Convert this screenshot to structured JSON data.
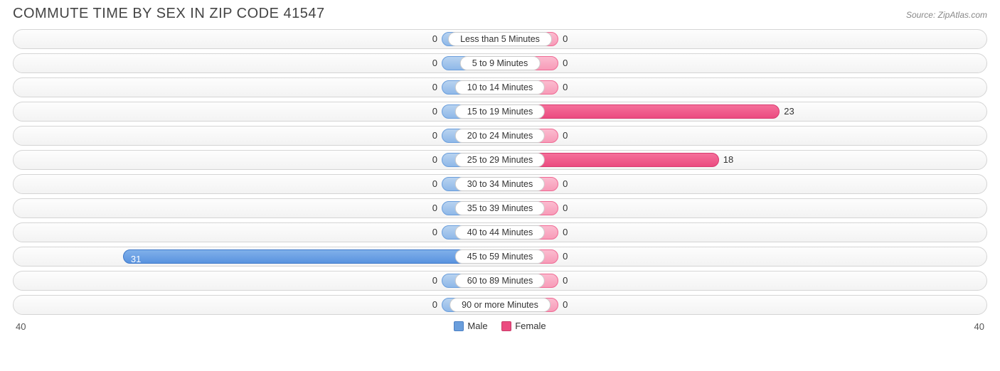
{
  "title": "COMMUTE TIME BY SEX IN ZIP CODE 41547",
  "source": "Source: ZipAtlas.com",
  "axis_max": 40,
  "min_bar_pct": 12,
  "categories": [
    {
      "label": "Less than 5 Minutes",
      "male": 0,
      "female": 0
    },
    {
      "label": "5 to 9 Minutes",
      "male": 0,
      "female": 0
    },
    {
      "label": "10 to 14 Minutes",
      "male": 0,
      "female": 0
    },
    {
      "label": "15 to 19 Minutes",
      "male": 0,
      "female": 23
    },
    {
      "label": "20 to 24 Minutes",
      "male": 0,
      "female": 0
    },
    {
      "label": "25 to 29 Minutes",
      "male": 0,
      "female": 18
    },
    {
      "label": "30 to 34 Minutes",
      "male": 0,
      "female": 0
    },
    {
      "label": "35 to 39 Minutes",
      "male": 0,
      "female": 0
    },
    {
      "label": "40 to 44 Minutes",
      "male": 0,
      "female": 0
    },
    {
      "label": "45 to 59 Minutes",
      "male": 31,
      "female": 0
    },
    {
      "label": "60 to 89 Minutes",
      "male": 0,
      "female": 0
    },
    {
      "label": "90 or more Minutes",
      "male": 0,
      "female": 0
    }
  ],
  "legend": {
    "male": "Male",
    "female": "Female"
  },
  "colors": {
    "male_light": "#8fb8e8",
    "male_dark": "#5a93df",
    "female_light": "#f79bb8",
    "female_dark": "#eb4b80",
    "track_border": "#d5d5d5",
    "background": "#ffffff",
    "text": "#333333"
  },
  "typography": {
    "title_fontsize": 20,
    "label_fontsize": 13,
    "category_fontsize": 12.5
  }
}
